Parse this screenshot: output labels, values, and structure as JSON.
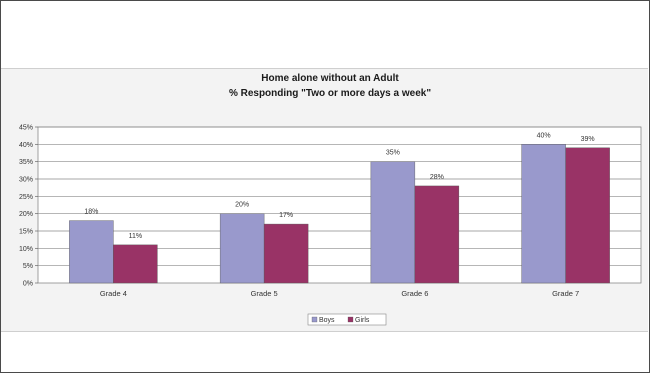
{
  "chart_data": {
    "type": "bar",
    "title": "Home alone without an Adult",
    "subtitle": "% Responding \"Two or more days a week\"",
    "categories": [
      "Grade 4",
      "Grade 5",
      "Grade 6",
      "Grade 7"
    ],
    "series": [
      {
        "name": "Boys",
        "values": [
          18,
          20,
          35,
          40
        ],
        "labels": [
          "18%",
          "20%",
          "35%",
          "40%"
        ],
        "color": "#9999cc"
      },
      {
        "name": "Girls",
        "values": [
          11,
          17,
          28,
          39
        ],
        "labels": [
          "11%",
          "17%",
          "28%",
          "39%"
        ],
        "color": "#993366"
      }
    ],
    "ylim": [
      0,
      45
    ],
    "yticks": [
      0,
      5,
      10,
      15,
      20,
      25,
      30,
      35,
      40,
      45
    ],
    "ytick_labels": [
      "0%",
      "5%",
      "10%",
      "15%",
      "20%",
      "25%",
      "30%",
      "35%",
      "40%",
      "45%"
    ],
    "grid": true,
    "legend_position": "bottom"
  }
}
